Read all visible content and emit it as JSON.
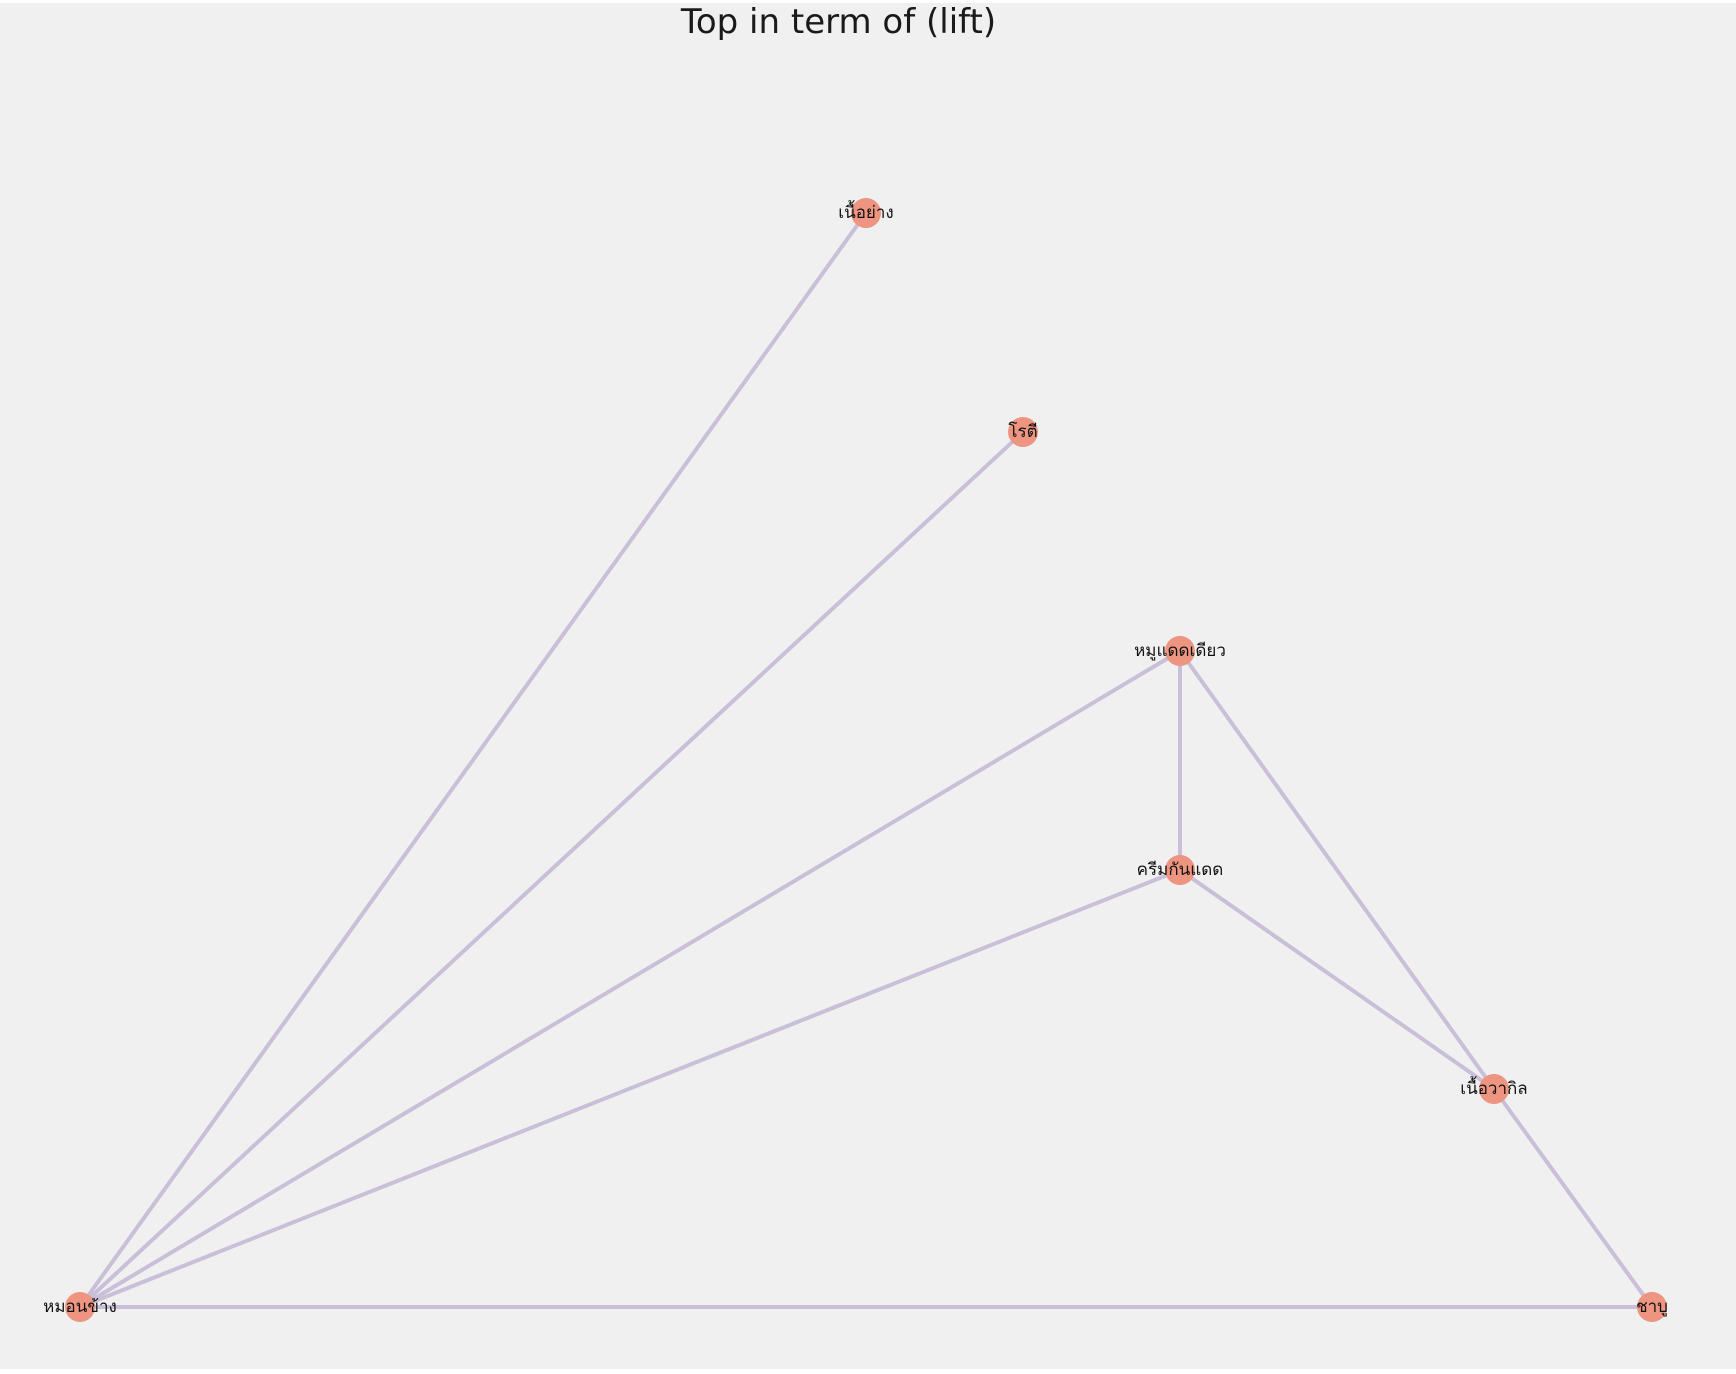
{
  "title": "Top in term of (lift)",
  "colors": {
    "background": "#f0f0f0",
    "node": "#ed9580",
    "edge": "#c9bfd8"
  },
  "nodes": [
    {
      "id": "n1",
      "label": "เนื้อย่าง"
    },
    {
      "id": "n2",
      "label": "โรตี"
    },
    {
      "id": "n3",
      "label": "หมูแดดเดียว"
    },
    {
      "id": "n4",
      "label": "ครีมกันแดด"
    },
    {
      "id": "n5",
      "label": "เนื้อวากิล"
    },
    {
      "id": "n6",
      "label": "หมอนข้าง"
    },
    {
      "id": "n7",
      "label": "ชาบู"
    }
  ],
  "edges": [
    {
      "from": "n6",
      "to": "n1"
    },
    {
      "from": "n6",
      "to": "n2"
    },
    {
      "from": "n6",
      "to": "n3"
    },
    {
      "from": "n6",
      "to": "n4"
    },
    {
      "from": "n6",
      "to": "n7"
    },
    {
      "from": "n3",
      "to": "n4"
    },
    {
      "from": "n3",
      "to": "n5"
    },
    {
      "from": "n4",
      "to": "n5"
    },
    {
      "from": "n5",
      "to": "n7"
    }
  ]
}
